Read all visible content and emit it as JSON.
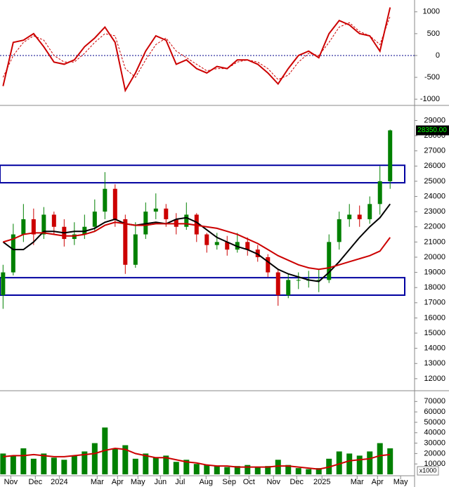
{
  "chart_data": [
    {
      "type": "line",
      "xlim": [
        -0.3,
        40.4
      ],
      "ylim": [
        -1110,
        1270
      ],
      "yticks": [
        1000,
        500,
        0,
        -500,
        -1000
      ],
      "reference_line": 0,
      "reference_color": "#00008b",
      "series": [
        {
          "color": "#cc0000",
          "dashed": false,
          "values": [
            -700,
            300,
            350,
            500,
            200,
            -150,
            -200,
            -100,
            200,
            400,
            650,
            300,
            -800,
            -400,
            100,
            450,
            350,
            -200,
            -100,
            -300,
            -400,
            -250,
            -300,
            -100,
            -100,
            -200,
            -400,
            -650,
            -300,
            0,
            100,
            -50,
            500,
            800,
            700,
            500,
            450,
            100,
            1100
          ]
        },
        {
          "color": "#cc0000",
          "dashed": true,
          "values": [
            -500,
            0,
            300,
            450,
            350,
            0,
            -150,
            -150,
            50,
            300,
            500,
            450,
            -300,
            -500,
            -100,
            250,
            400,
            100,
            -50,
            -200,
            -350,
            -300,
            -300,
            -150,
            -100,
            -150,
            -300,
            -550,
            -450,
            -150,
            50,
            0,
            300,
            650,
            750,
            550,
            450,
            250,
            900
          ]
        }
      ]
    },
    {
      "type": "candlestick",
      "xlim": [
        -0.3,
        40.4
      ],
      "ylim": [
        11300,
        29900
      ],
      "yticks": [
        29000,
        28000,
        27000,
        26000,
        25000,
        24000,
        23000,
        22000,
        21000,
        20000,
        19000,
        18000,
        17000,
        16000,
        15000,
        14000,
        13000,
        12000
      ],
      "up_color": "#008000",
      "down_color": "#cc0000",
      "open": [
        17500,
        19000,
        21500,
        22500,
        21500,
        22800,
        22000,
        21200,
        21500,
        22000,
        23000,
        24500,
        22500,
        19500,
        21500,
        23000,
        23200,
        22500,
        22000,
        22800,
        21500,
        20800,
        21000,
        20500,
        21000,
        20500,
        20000,
        19000,
        17500,
        18500,
        18500,
        18500,
        18500,
        21000,
        22500,
        22800,
        22500,
        23500,
        25000
      ],
      "high": [
        19500,
        22200,
        23500,
        23200,
        23300,
        23000,
        22500,
        22300,
        22800,
        23800,
        25600,
        24800,
        22800,
        22300,
        23600,
        24200,
        23500,
        22900,
        23600,
        22900,
        21600,
        21600,
        21400,
        21600,
        21300,
        20800,
        20200,
        19200,
        18900,
        19000,
        19100,
        19200,
        21500,
        23000,
        23500,
        23400,
        24000,
        26000,
        28400
      ],
      "low": [
        16600,
        18800,
        21000,
        20800,
        21200,
        21500,
        20700,
        20800,
        21200,
        21700,
        22500,
        22000,
        18900,
        19300,
        21200,
        22500,
        22000,
        21500,
        21800,
        21000,
        20300,
        20500,
        20100,
        20300,
        20100,
        19700,
        18700,
        16800,
        17300,
        17900,
        18000,
        17700,
        18300,
        20500,
        22000,
        22000,
        22200,
        22800,
        24500
      ],
      "close": [
        19000,
        21500,
        22500,
        21500,
        22800,
        22000,
        21200,
        21500,
        22000,
        23000,
        24500,
        22500,
        19500,
        21500,
        23000,
        23200,
        22500,
        22000,
        22800,
        21500,
        20800,
        21000,
        20500,
        21000,
        20500,
        20000,
        19000,
        17500,
        18500,
        18500,
        18500,
        18500,
        21000,
        22500,
        22800,
        22500,
        23500,
        25000,
        28350
      ],
      "last_value_label": "28350.00",
      "lines": [
        {
          "color": "#000000",
          "values": [
            21000,
            20500,
            20500,
            21000,
            21700,
            21700,
            21600,
            21700,
            21700,
            21900,
            22300,
            22500,
            22200,
            22100,
            22200,
            22300,
            22200,
            22500,
            22600,
            22300,
            21800,
            21300,
            21000,
            20700,
            20500,
            20200,
            19700,
            19200,
            18900,
            18700,
            18500,
            18400,
            19000,
            19700,
            20500,
            21300,
            22000,
            22600,
            23500
          ]
        },
        {
          "color": "#cc0000",
          "values": [
            21000,
            21200,
            21500,
            21600,
            21600,
            21500,
            21400,
            21400,
            21500,
            21700,
            22100,
            22300,
            22200,
            22100,
            22100,
            22200,
            22200,
            22200,
            22200,
            22100,
            22000,
            21900,
            21700,
            21500,
            21200,
            20900,
            20500,
            20100,
            19800,
            19500,
            19300,
            19200,
            19300,
            19500,
            19700,
            19900,
            20100,
            20400,
            21300
          ]
        }
      ],
      "zones": [
        {
          "low": 24900,
          "high": 26050
        },
        {
          "low": 17500,
          "high": 18650
        }
      ],
      "zone_color": "#0000a0"
    },
    {
      "type": "bar",
      "xlim": [
        -0.3,
        40.4
      ],
      "ylim": [
        0,
        79000
      ],
      "yticks": [
        70000,
        60000,
        50000,
        40000,
        30000,
        20000,
        10000
      ],
      "unit_label": "x1000",
      "color": "#008000",
      "values": [
        20000,
        18000,
        25000,
        15000,
        20000,
        16000,
        14000,
        18000,
        22000,
        30000,
        45000,
        25000,
        28000,
        15000,
        20000,
        16000,
        18000,
        12000,
        14000,
        10000,
        9000,
        8000,
        7000,
        8000,
        9000,
        7000,
        8000,
        14000,
        9000,
        6000,
        5000,
        6000,
        15000,
        22000,
        20000,
        18000,
        22000,
        30000,
        25000
      ],
      "line": {
        "color": "#cc0000",
        "values": [
          17000,
          18000,
          18000,
          19000,
          18000,
          17000,
          17000,
          18000,
          19000,
          20000,
          23000,
          25000,
          24000,
          20000,
          18000,
          16000,
          16000,
          14000,
          12000,
          11000,
          9000,
          8000,
          8000,
          7000,
          7000,
          7000,
          7000,
          8000,
          8000,
          7000,
          6000,
          5000,
          7000,
          10000,
          13000,
          14000,
          15000,
          18000,
          19000
        ]
      },
      "xticks": [
        {
          "value": 0.76,
          "label": "Nov"
        },
        {
          "value": 3.17,
          "label": "Dec"
        },
        {
          "value": 5.52,
          "label": "2024"
        },
        {
          "value": 9.24,
          "label": "Mar"
        },
        {
          "value": 11.24,
          "label": "Apr"
        },
        {
          "value": 13.24,
          "label": "May"
        },
        {
          "value": 15.45,
          "label": "Jun"
        },
        {
          "value": 17.38,
          "label": "Jul"
        },
        {
          "value": 19.93,
          "label": "Aug"
        },
        {
          "value": 22.2,
          "label": "Sep"
        },
        {
          "value": 24.14,
          "label": "Oct"
        },
        {
          "value": 26.55,
          "label": "Nov"
        },
        {
          "value": 28.83,
          "label": "Dec"
        },
        {
          "value": 31.31,
          "label": "2025"
        },
        {
          "value": 34.76,
          "label": "Mar"
        },
        {
          "value": 36.76,
          "label": "Apr"
        },
        {
          "value": 39.03,
          "label": "May"
        }
      ]
    }
  ]
}
